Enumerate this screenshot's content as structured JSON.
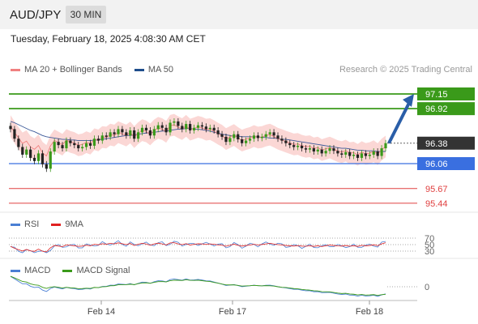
{
  "header": {
    "symbol": "AUD/JPY",
    "timeframe": "30 MIN"
  },
  "datetime": "Tuesday, February 18, 2025 4:08:30 AM CET",
  "legend": {
    "ma20_label": "MA 20 + Bollinger Bands",
    "ma20_color": "#f08080",
    "ma50_label": "MA 50",
    "ma50_color": "#1f4e8c",
    "research": "Research © 2025 Trading Central"
  },
  "rsi_legend": {
    "rsi_label": "RSI",
    "rsi_color": "#4a7fd4",
    "ma_label": "9MA",
    "ma_color": "#e02020"
  },
  "macd_legend": {
    "macd_label": "MACD",
    "macd_color": "#4a7fd4",
    "signal_label": "MACD Signal",
    "signal_color": "#3a9a1a"
  },
  "chart_data": [
    {
      "type": "candlestick",
      "x_ticks": [
        "Feb 14",
        "Feb 17",
        "Feb 18"
      ],
      "levels": [
        {
          "value": 97.15,
          "label": "97.15",
          "kind": "resistance",
          "color": "#3a9a1a"
        },
        {
          "value": 96.92,
          "label": "96.92",
          "kind": "resistance",
          "color": "#3a9a1a"
        },
        {
          "value": 96.38,
          "label": "96.38",
          "kind": "current",
          "color": "#333333"
        },
        {
          "value": 96.06,
          "label": "96.06",
          "kind": "pivot",
          "color": "#3a6fe0"
        },
        {
          "value": 95.67,
          "label": "95.67",
          "kind": "support",
          "color": "#e04040"
        },
        {
          "value": 95.44,
          "label": "95.44",
          "kind": "support",
          "color": "#e04040"
        }
      ],
      "close": [
        96.6,
        96.45,
        96.32,
        96.2,
        96.28,
        96.15,
        96.1,
        96.22,
        96.05,
        95.98,
        96.25,
        96.4,
        96.35,
        96.3,
        96.42,
        96.38,
        96.35,
        96.3,
        96.32,
        96.38,
        96.34,
        96.45,
        96.42,
        96.5,
        96.48,
        96.55,
        96.52,
        96.6,
        96.55,
        96.5,
        96.58,
        96.45,
        96.55,
        96.62,
        96.58,
        96.5,
        96.6,
        96.66,
        96.62,
        96.55,
        96.7,
        96.72,
        96.65,
        96.6,
        96.68,
        96.58,
        96.62,
        96.66,
        96.64,
        96.6,
        96.62,
        96.58,
        96.52,
        96.48,
        96.4,
        96.46,
        96.52,
        96.44,
        96.38,
        96.42,
        96.45,
        96.5,
        96.46,
        96.48,
        96.52,
        96.55,
        96.5,
        96.45,
        96.42,
        96.38,
        96.35,
        96.32,
        96.34,
        96.3,
        96.28,
        96.3,
        96.25,
        96.28,
        96.22,
        96.26,
        96.3,
        96.26,
        96.22,
        96.2,
        96.24,
        96.18,
        96.2,
        96.15,
        96.22,
        96.18,
        96.2,
        96.25,
        96.18,
        96.3,
        96.38
      ],
      "ma50": [
        96.72,
        96.7,
        96.67,
        96.64,
        96.61,
        96.58,
        96.56,
        96.53,
        96.5,
        96.48,
        96.47,
        96.46,
        96.45,
        96.44,
        96.44,
        96.43,
        96.43,
        96.42,
        96.42,
        96.42,
        96.42,
        96.43,
        96.43,
        96.44,
        96.45,
        96.46,
        96.47,
        96.48,
        96.49,
        96.5,
        96.5,
        96.51,
        96.52,
        96.53,
        96.54,
        96.54,
        96.55,
        96.56,
        96.57,
        96.57,
        96.58,
        96.59,
        96.6,
        96.6,
        96.61,
        96.61,
        96.6,
        96.6,
        96.59,
        96.58,
        96.57,
        96.55,
        96.54,
        96.52,
        96.51,
        96.5,
        96.49,
        96.49,
        96.48,
        96.48,
        96.48,
        96.48,
        96.48,
        96.47,
        96.47,
        96.46,
        96.46,
        96.45,
        96.44,
        96.44,
        96.43,
        96.42,
        96.41,
        96.4,
        96.39,
        96.38,
        96.37,
        96.36,
        96.35,
        96.34,
        96.33,
        96.32,
        96.31,
        96.3,
        96.3,
        96.29,
        96.28,
        96.27,
        96.27,
        96.26,
        96.26,
        96.26,
        96.25,
        96.25,
        96.25
      ],
      "ylim": [
        95.35,
        97.35
      ]
    },
    {
      "type": "line",
      "title": "RSI",
      "levels": [
        70,
        50,
        30
      ],
      "ylim": [
        0,
        100
      ]
    },
    {
      "type": "line",
      "title": "MACD",
      "levels": [
        0
      ]
    }
  ]
}
